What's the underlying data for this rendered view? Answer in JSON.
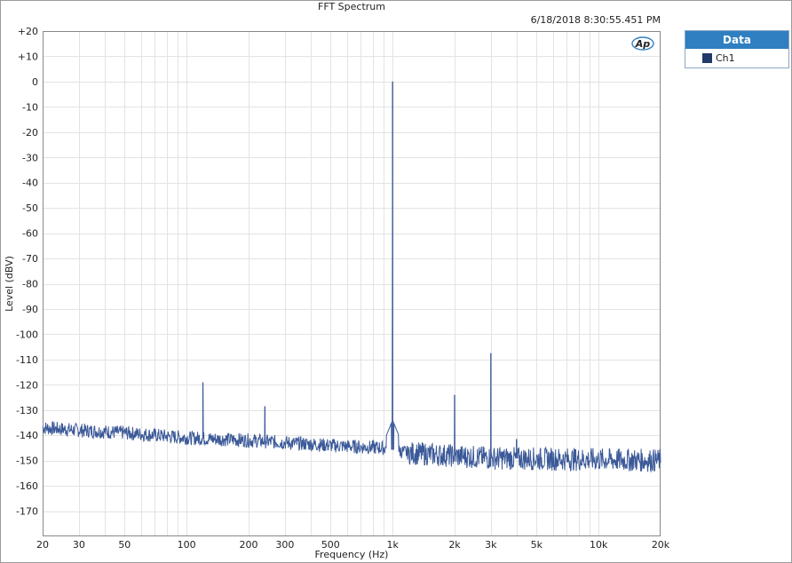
{
  "chart_data": {
    "type": "line",
    "title": "FFT Spectrum",
    "timestamp": "6/18/2018 8:30:55.451 PM",
    "xlabel": "Frequency (Hz)",
    "ylabel": "Level (dBV)",
    "xscale": "log",
    "xlim": [
      20,
      20000
    ],
    "ylim": [
      -180,
      20
    ],
    "grid": true,
    "x_ticks": [
      {
        "value": 20,
        "label": "20"
      },
      {
        "value": 30,
        "label": "30"
      },
      {
        "value": 50,
        "label": "50"
      },
      {
        "value": 100,
        "label": "100"
      },
      {
        "value": 200,
        "label": "200"
      },
      {
        "value": 300,
        "label": "300"
      },
      {
        "value": 500,
        "label": "500"
      },
      {
        "value": 1000,
        "label": "1k"
      },
      {
        "value": 2000,
        "label": "2k"
      },
      {
        "value": 3000,
        "label": "3k"
      },
      {
        "value": 5000,
        "label": "5k"
      },
      {
        "value": 10000,
        "label": "10k"
      },
      {
        "value": 20000,
        "label": "20k"
      }
    ],
    "y_ticks": [
      {
        "value": 20,
        "label": "+20"
      },
      {
        "value": 10,
        "label": "+10"
      },
      {
        "value": 0,
        "label": "0"
      },
      {
        "value": -10,
        "label": "-10"
      },
      {
        "value": -20,
        "label": "-20"
      },
      {
        "value": -30,
        "label": "-30"
      },
      {
        "value": -40,
        "label": "-40"
      },
      {
        "value": -50,
        "label": "-50"
      },
      {
        "value": -60,
        "label": "-60"
      },
      {
        "value": -70,
        "label": "-70"
      },
      {
        "value": -80,
        "label": "-80"
      },
      {
        "value": -90,
        "label": "-90"
      },
      {
        "value": -100,
        "label": "-100"
      },
      {
        "value": -110,
        "label": "-110"
      },
      {
        "value": -120,
        "label": "-120"
      },
      {
        "value": -130,
        "label": "-130"
      },
      {
        "value": -140,
        "label": "-140"
      },
      {
        "value": -150,
        "label": "-150"
      },
      {
        "value": -160,
        "label": "-160"
      },
      {
        "value": -170,
        "label": "-170"
      }
    ],
    "series": [
      {
        "name": "Ch1",
        "color": "#3b5998",
        "noise_floor": [
          {
            "x": 20,
            "y": -137
          },
          {
            "x": 30,
            "y": -138
          },
          {
            "x": 50,
            "y": -139
          },
          {
            "x": 100,
            "y": -141
          },
          {
            "x": 200,
            "y": -142
          },
          {
            "x": 500,
            "y": -144
          },
          {
            "x": 900,
            "y": -145
          },
          {
            "x": 1200,
            "y": -147
          },
          {
            "x": 3000,
            "y": -149
          },
          {
            "x": 20000,
            "y": -150
          }
        ],
        "peaks": [
          {
            "x": 120,
            "y": -119
          },
          {
            "x": 240,
            "y": -128.5
          },
          {
            "x": 1000,
            "y": 0
          },
          {
            "x": 2000,
            "y": -124
          },
          {
            "x": 3000,
            "y": -107.5
          },
          {
            "x": 4000,
            "y": -141.5
          }
        ]
      }
    ]
  },
  "legend": {
    "header": "Data",
    "items": [
      {
        "label": "Ch1",
        "color": "#1f3a6b"
      }
    ]
  },
  "logo_text": "AP"
}
